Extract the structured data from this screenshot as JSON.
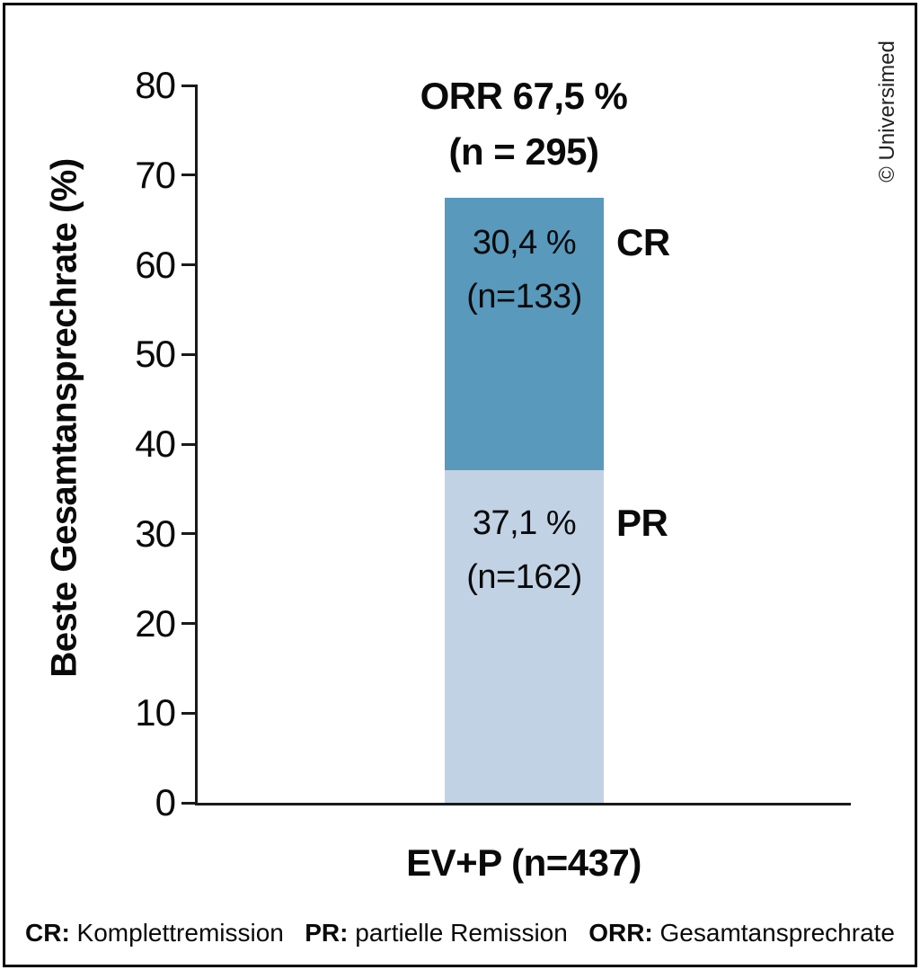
{
  "figure": {
    "copyright": "© Universimed"
  },
  "chart_data": {
    "type": "bar",
    "stacked": true,
    "title_line1": "ORR 67,5 %",
    "title_line2": "(n = 295)",
    "orr_total_pct": 67.5,
    "orr_n": 295,
    "categories": [
      "EV+P (n=437)"
    ],
    "series": [
      {
        "name": "PR",
        "value": 37.1,
        "n": 162,
        "label_pct": "37,1 %",
        "label_n": "(n=162)",
        "color": "#c1d2e4"
      },
      {
        "name": "CR",
        "value": 30.4,
        "n": 133,
        "label_pct": "30,4 %",
        "label_n": "(n=133)",
        "color": "#5899bc"
      }
    ],
    "xlabel": "EV+P (n=437)",
    "ylabel": "Beste Gesamtansprechrate (%)",
    "ylim": [
      0,
      80
    ],
    "yticks": [
      80,
      70,
      60,
      50,
      40,
      30,
      20,
      10,
      0
    ],
    "grid": false,
    "legend_position": "bottom"
  },
  "legend": {
    "items": [
      {
        "abbr": "CR:",
        "text": "Komplettremission"
      },
      {
        "abbr": "PR:",
        "text": "partielle Remission"
      },
      {
        "abbr": "ORR:",
        "text": "Gesamtansprechrate"
      }
    ]
  }
}
